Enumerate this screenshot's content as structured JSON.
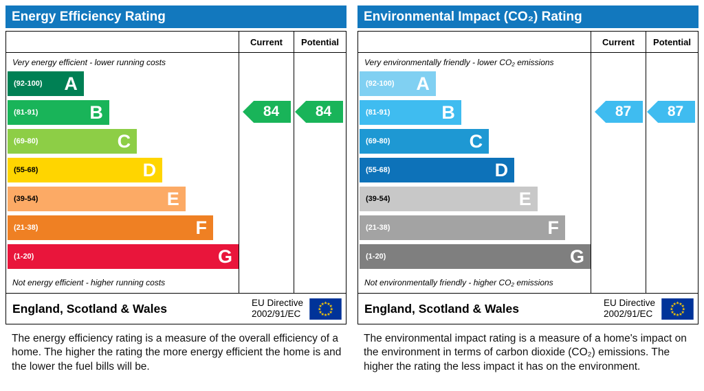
{
  "title_bar_color": "#1278be",
  "eu_flag": {
    "bg_color": "#003399",
    "star_color": "#ffcc00"
  },
  "panels": [
    {
      "title": "Energy Efficiency Rating",
      "columns": {
        "current": "Current",
        "potential": "Potential"
      },
      "top_caption": "Very energy efficient - lower running costs",
      "bottom_caption": "Not energy efficient - higher running costs",
      "bands": [
        {
          "letter": "A",
          "range": "(92-100)",
          "color": "#008054",
          "range_color": "#ffffff",
          "letter_color": "#ffffff",
          "width_pct": 33
        },
        {
          "letter": "B",
          "range": "(81-91)",
          "color": "#19b459",
          "range_color": "#ffffff",
          "letter_color": "#ffffff",
          "width_pct": 44
        },
        {
          "letter": "C",
          "range": "(69-80)",
          "color": "#8dce46",
          "range_color": "#ffffff",
          "letter_color": "#ffffff",
          "width_pct": 56
        },
        {
          "letter": "D",
          "range": "(55-68)",
          "color": "#ffd500",
          "range_color": "#000000",
          "letter_color": "#ffffff",
          "width_pct": 67
        },
        {
          "letter": "E",
          "range": "(39-54)",
          "color": "#fcaa65",
          "range_color": "#000000",
          "letter_color": "#ffffff",
          "width_pct": 77
        },
        {
          "letter": "F",
          "range": "(21-38)",
          "color": "#ef8023",
          "range_color": "#ffffff",
          "letter_color": "#ffffff",
          "width_pct": 89
        },
        {
          "letter": "G",
          "range": "(1-20)",
          "color": "#e9153b",
          "range_color": "#ffffff",
          "letter_color": "#ffffff",
          "width_pct": 100
        }
      ],
      "current": {
        "value": "84",
        "band_index": 1,
        "color": "#19b459"
      },
      "potential": {
        "value": "84",
        "band_index": 1,
        "color": "#19b459"
      },
      "footer": {
        "region": "England, Scotland & Wales",
        "directive_line1": "EU Directive",
        "directive_line2": "2002/91/EC"
      },
      "description": "The energy efficiency rating is a measure of the overall efficiency of a home. The higher the rating the more energy efficient the home is and the lower the fuel bills will be."
    },
    {
      "title": "Environmental Impact (CO₂) Rating",
      "columns": {
        "current": "Current",
        "potential": "Potential"
      },
      "top_caption": "Very environmentally friendly - lower CO₂ emissions",
      "bottom_caption": "Not environmentally friendly - higher CO₂ emissions",
      "bands": [
        {
          "letter": "A",
          "range": "(92-100)",
          "color": "#80d0f2",
          "range_color": "#ffffff",
          "letter_color": "#ffffff",
          "width_pct": 33
        },
        {
          "letter": "B",
          "range": "(81-91)",
          "color": "#3fbcf0",
          "range_color": "#ffffff",
          "letter_color": "#ffffff",
          "width_pct": 44
        },
        {
          "letter": "C",
          "range": "(69-80)",
          "color": "#1e98d3",
          "range_color": "#ffffff",
          "letter_color": "#ffffff",
          "width_pct": 56
        },
        {
          "letter": "D",
          "range": "(55-68)",
          "color": "#0d72b9",
          "range_color": "#ffffff",
          "letter_color": "#ffffff",
          "width_pct": 67
        },
        {
          "letter": "E",
          "range": "(39-54)",
          "color": "#c8c8c8",
          "range_color": "#000000",
          "letter_color": "#ffffff",
          "width_pct": 77
        },
        {
          "letter": "F",
          "range": "(21-38)",
          "color": "#a3a3a3",
          "range_color": "#ffffff",
          "letter_color": "#ffffff",
          "width_pct": 89
        },
        {
          "letter": "G",
          "range": "(1-20)",
          "color": "#7f7f7f",
          "range_color": "#ffffff",
          "letter_color": "#ffffff",
          "width_pct": 100
        }
      ],
      "current": {
        "value": "87",
        "band_index": 1,
        "color": "#3fbcf0"
      },
      "potential": {
        "value": "87",
        "band_index": 1,
        "color": "#3fbcf0"
      },
      "footer": {
        "region": "England, Scotland & Wales",
        "directive_line1": "EU Directive",
        "directive_line2": "2002/91/EC"
      },
      "description": "The environmental impact rating is a measure of a home's impact on the environment in terms of carbon dioxide (CO₂) emissions. The higher the rating the less impact it has on the environment."
    }
  ],
  "chart_data": [
    {
      "type": "bar",
      "title": "Energy Efficiency Rating",
      "categories": [
        "A (92-100)",
        "B (81-91)",
        "C (69-80)",
        "D (55-68)",
        "E (39-54)",
        "F (21-38)",
        "G (1-20)"
      ],
      "values": [
        33,
        44,
        56,
        67,
        77,
        89,
        100
      ],
      "current_rating": 84,
      "potential_rating": 84,
      "current_band": "B",
      "potential_band": "B",
      "top_caption": "Very energy efficient - lower running costs",
      "bottom_caption": "Not energy efficient - higher running costs",
      "region": "England, Scotland & Wales",
      "directive": "EU Directive 2002/91/EC"
    },
    {
      "type": "bar",
      "title": "Environmental Impact (CO₂) Rating",
      "categories": [
        "A (92-100)",
        "B (81-91)",
        "C (69-80)",
        "D (55-68)",
        "E (39-54)",
        "F (21-38)",
        "G (1-20)"
      ],
      "values": [
        33,
        44,
        56,
        67,
        77,
        89,
        100
      ],
      "current_rating": 87,
      "potential_rating": 87,
      "current_band": "B",
      "potential_band": "B",
      "top_caption": "Very environmentally friendly - lower CO₂ emissions",
      "bottom_caption": "Not environmentally friendly - higher CO₂ emissions",
      "region": "England, Scotland & Wales",
      "directive": "EU Directive 2002/91/EC"
    }
  ]
}
